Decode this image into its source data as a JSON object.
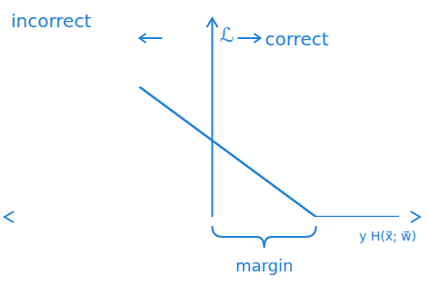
{
  "chart_data": {
    "type": "line",
    "x": [
      -0.7,
      1,
      1.8
    ],
    "values": [
      1.7,
      0,
      0
    ],
    "color": "#1e7fd8",
    "xlim": [
      -2,
      2
    ],
    "ylim": [
      0,
      2.6
    ],
    "xticks": [],
    "yticks": [],
    "tick_labels": false,
    "grid": false,
    "y_label": "ℒ",
    "x_label": "y H(x⃗; w⃗)",
    "annotations": [
      {
        "text": "incorrect"
      },
      {
        "text": "correct"
      },
      {
        "text": "margin",
        "x": [
          0,
          1
        ]
      }
    ]
  }
}
